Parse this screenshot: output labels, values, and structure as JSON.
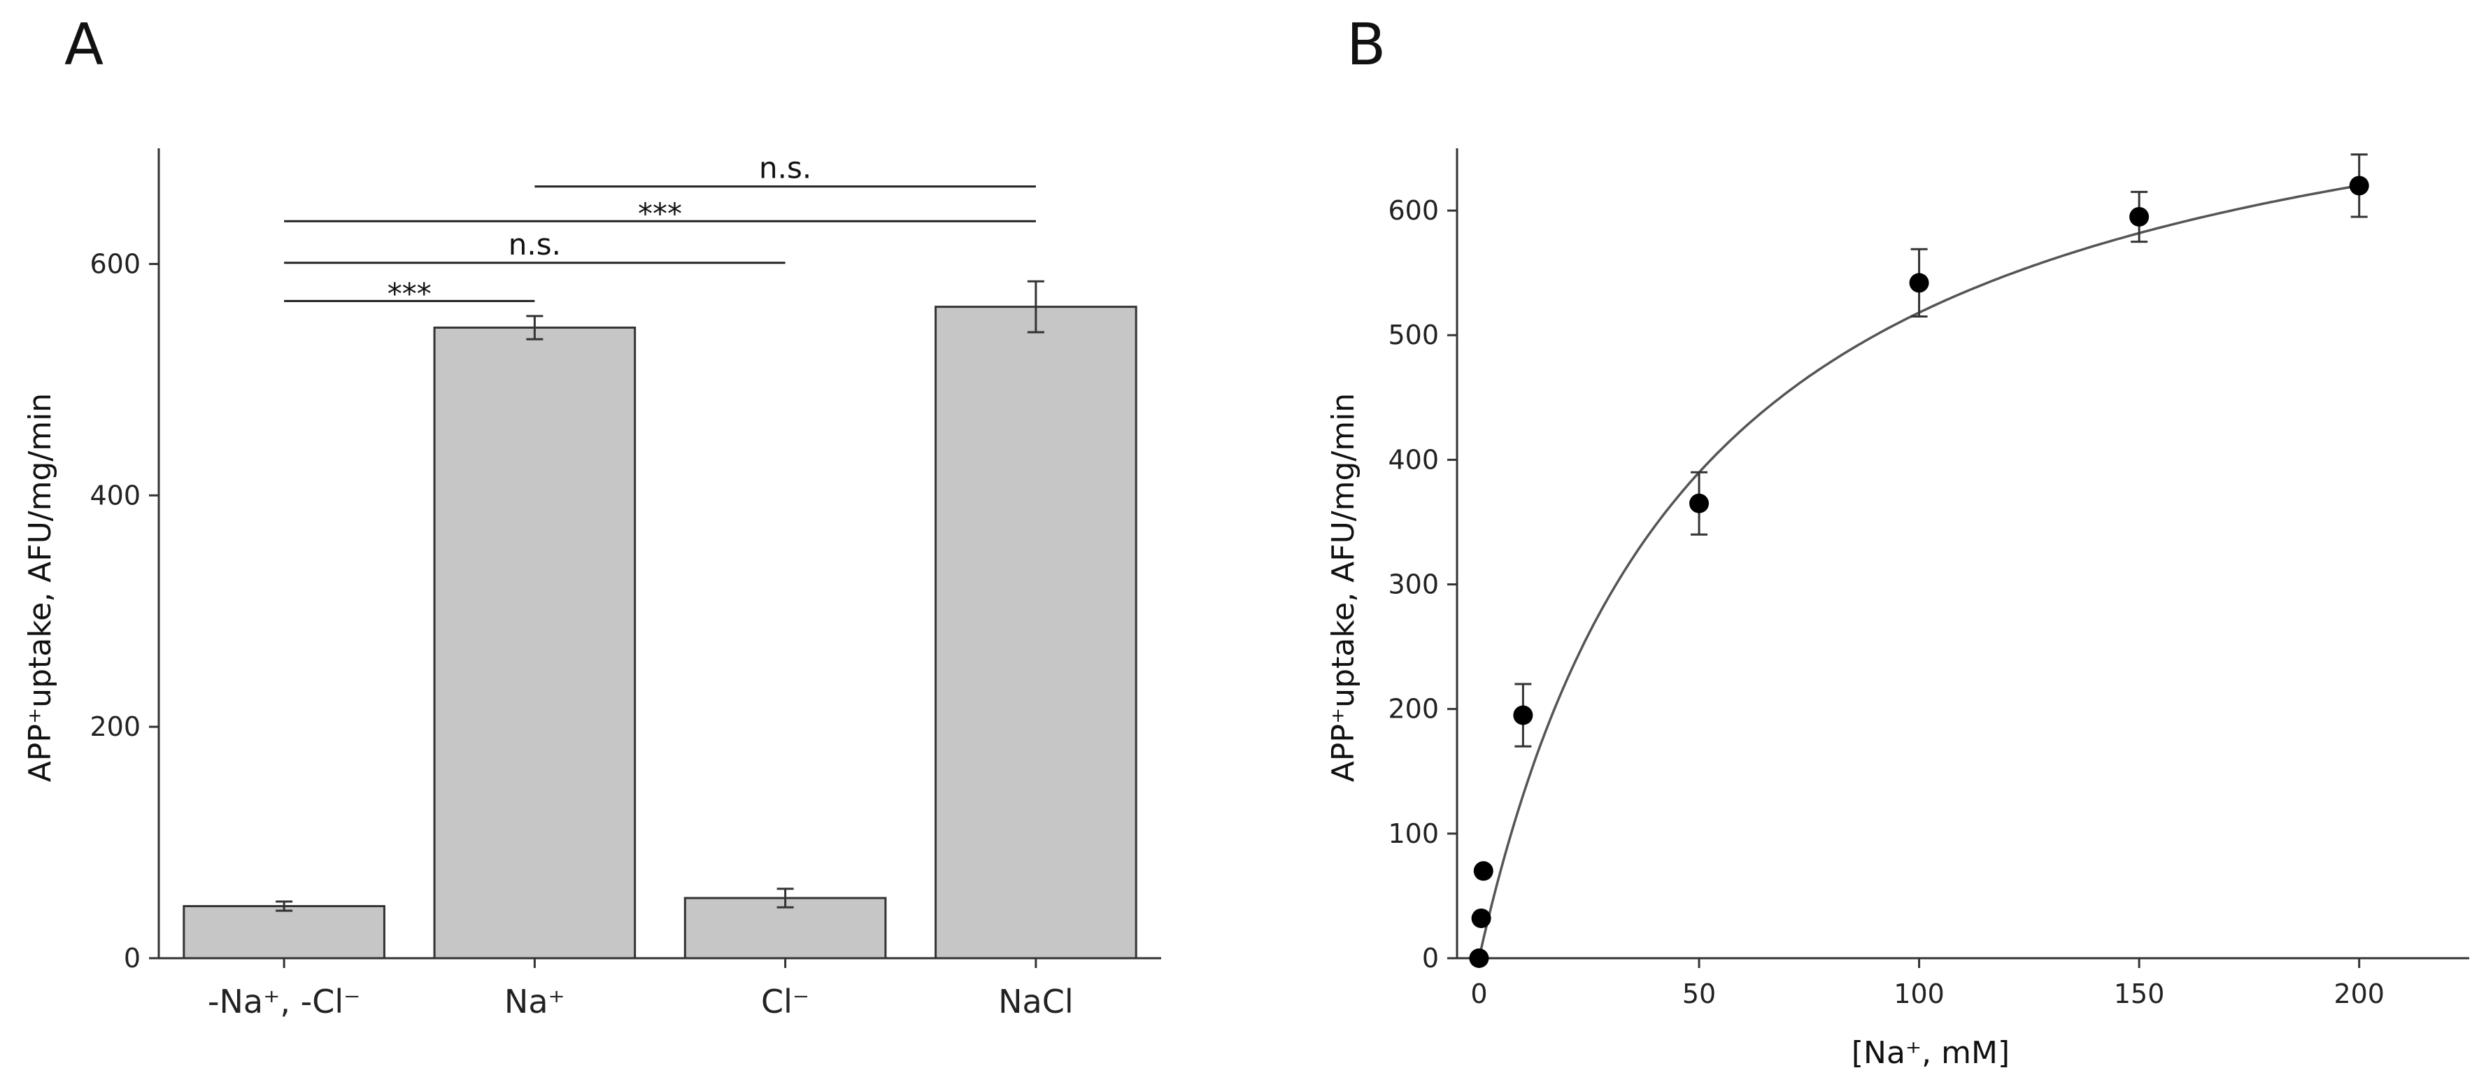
{
  "panels": {
    "a": {
      "letter": "A"
    },
    "b": {
      "letter": "B"
    }
  },
  "chart_data": [
    {
      "id": "A",
      "type": "bar",
      "title": "",
      "ylabel": "APP⁺uptake, AFU/mg/min",
      "xlabel": "",
      "ylim": [
        0,
        700
      ],
      "yticks": [
        0,
        200,
        400,
        600
      ],
      "categories": [
        "-Na⁺, -Cl⁻",
        "Na⁺",
        "Cl⁻",
        "NaCl"
      ],
      "values": [
        45,
        545,
        52,
        563
      ],
      "errors": [
        4,
        10,
        8,
        22
      ],
      "comparisons": [
        {
          "from": 0,
          "to": 1,
          "label": "***",
          "y": 568
        },
        {
          "from": 0,
          "to": 2,
          "label": "n.s.",
          "y": 601
        },
        {
          "from": 0,
          "to": 3,
          "label": "***",
          "y": 637
        },
        {
          "from": 1,
          "to": 3,
          "label": "n.s.",
          "y": 667
        }
      ],
      "color": "#c6c6c6"
    },
    {
      "id": "B",
      "type": "scatter",
      "title": "",
      "ylabel": "APP⁺uptake, AFU/mg/min",
      "xlabel": "[Na⁺, mM]",
      "xlim": [
        -5,
        225
      ],
      "ylim": [
        0,
        650
      ],
      "xticks": [
        0,
        50,
        100,
        150,
        200
      ],
      "yticks": [
        0,
        100,
        200,
        300,
        400,
        500,
        600
      ],
      "x": [
        0,
        0.5,
        1,
        10,
        50,
        100,
        150,
        200
      ],
      "y": [
        0,
        32,
        70,
        195,
        365,
        542,
        595,
        620
      ],
      "errors": [
        0,
        0,
        0,
        25,
        25,
        27,
        20,
        25
      ],
      "fit": {
        "model": "michaelis-menten",
        "vmax": 772,
        "km": 49
      },
      "color": "#000000"
    }
  ]
}
